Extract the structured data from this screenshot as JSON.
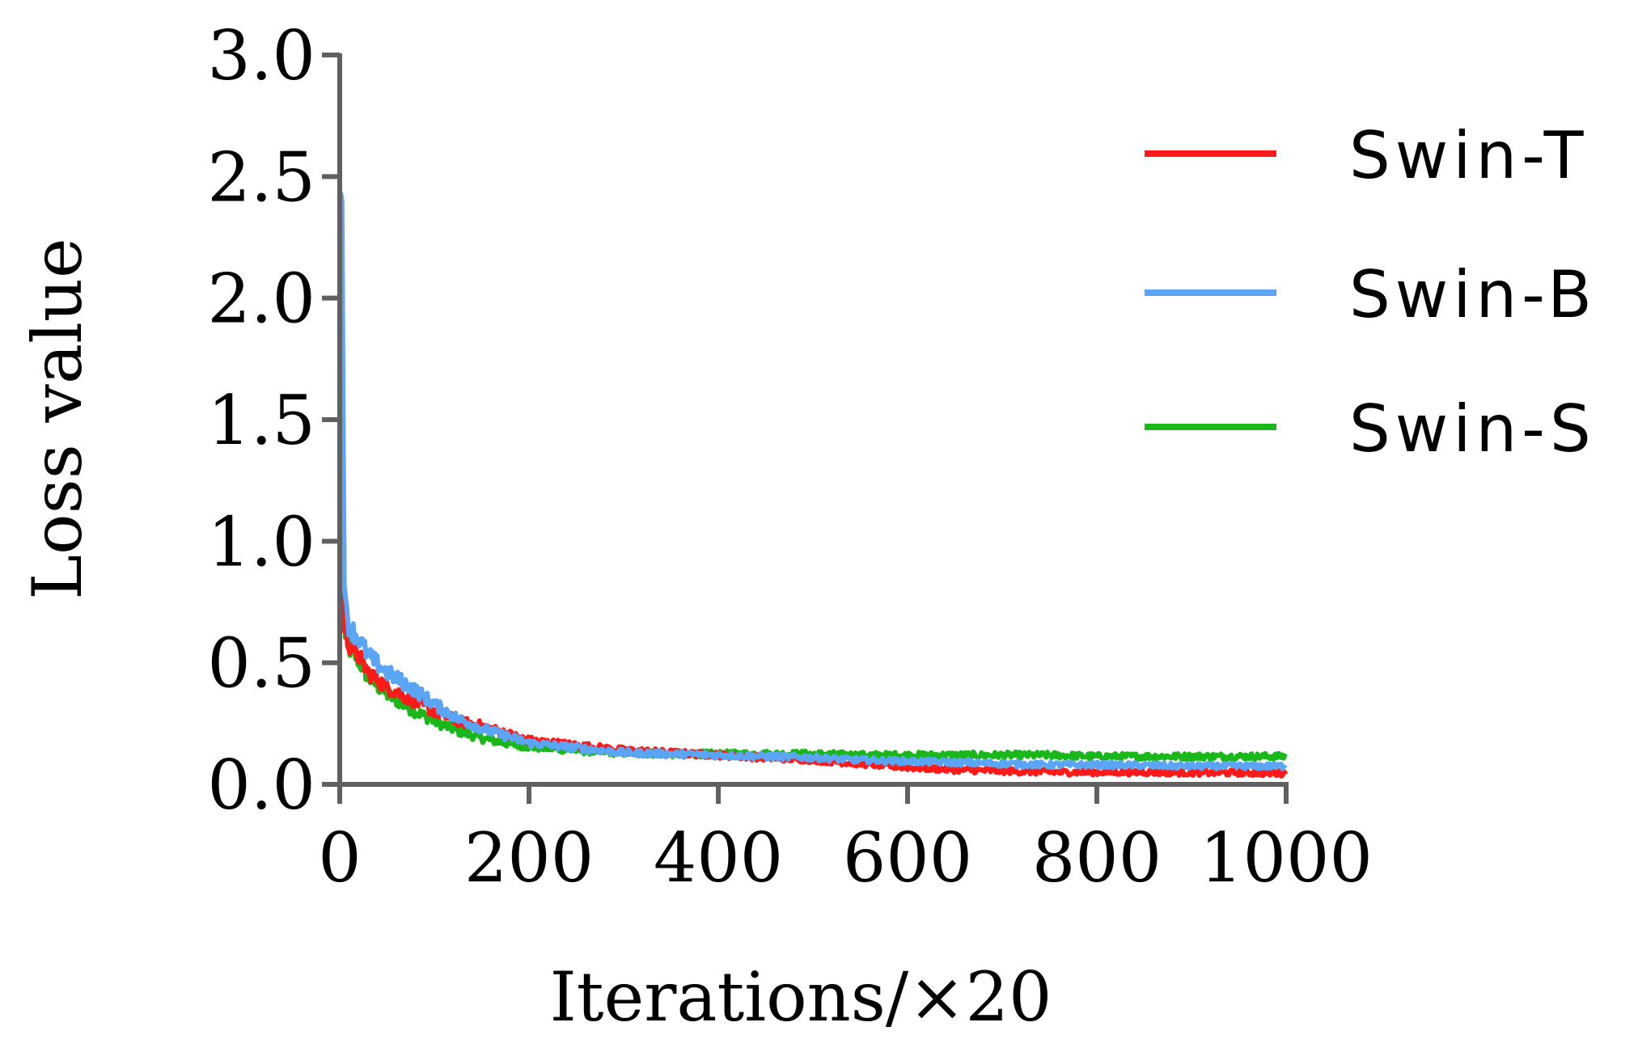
{
  "chart_data": {
    "type": "line",
    "title": "",
    "xlabel": "Iterations/×20",
    "ylabel": "Loss value",
    "xlim": [
      0,
      1000
    ],
    "ylim": [
      0.0,
      3.0
    ],
    "xticks": [
      "0",
      "200",
      "400",
      "600",
      "800",
      "1000"
    ],
    "yticks": [
      "0.0",
      "0.5",
      "1.0",
      "1.5",
      "2.0",
      "2.5",
      "3.0"
    ],
    "grid": false,
    "legend_position": "top-right",
    "series": [
      {
        "name": "Swin-T",
        "color": "#ff1a1a",
        "x": [
          0,
          2,
          5,
          10,
          20,
          30,
          50,
          75,
          100,
          125,
          150,
          175,
          200,
          250,
          300,
          350,
          400,
          450,
          500,
          550,
          600,
          650,
          700,
          750,
          800,
          850,
          900,
          950,
          1000
        ],
        "y": [
          0.85,
          1.2,
          0.62,
          0.58,
          0.53,
          0.46,
          0.4,
          0.35,
          0.3,
          0.26,
          0.24,
          0.21,
          0.18,
          0.16,
          0.14,
          0.13,
          0.12,
          0.11,
          0.1,
          0.085,
          0.07,
          0.06,
          0.055,
          0.05,
          0.05,
          0.05,
          0.048,
          0.048,
          0.045
        ]
      },
      {
        "name": "Swin-B",
        "color": "#5aa5f5",
        "x": [
          0,
          2,
          5,
          10,
          20,
          30,
          50,
          75,
          100,
          125,
          150,
          175,
          200,
          250,
          300,
          350,
          400,
          450,
          500,
          550,
          600,
          650,
          700,
          750,
          800,
          850,
          900,
          950,
          1000
        ],
        "y": [
          2.1,
          2.65,
          0.75,
          0.65,
          0.6,
          0.53,
          0.46,
          0.4,
          0.33,
          0.27,
          0.23,
          0.2,
          0.17,
          0.15,
          0.13,
          0.125,
          0.12,
          0.115,
          0.11,
          0.1,
          0.095,
          0.09,
          0.085,
          0.08,
          0.08,
          0.078,
          0.075,
          0.075,
          0.075
        ]
      },
      {
        "name": "Swin-S",
        "color": "#19b719",
        "x": [
          0,
          2,
          5,
          10,
          20,
          30,
          50,
          75,
          100,
          125,
          150,
          175,
          200,
          250,
          300,
          350,
          400,
          450,
          500,
          550,
          600,
          650,
          700,
          750,
          800,
          850,
          900,
          950,
          1000
        ],
        "y": [
          1.8,
          2.3,
          0.6,
          0.56,
          0.51,
          0.44,
          0.37,
          0.31,
          0.26,
          0.22,
          0.19,
          0.17,
          0.155,
          0.14,
          0.13,
          0.125,
          0.125,
          0.125,
          0.125,
          0.12,
          0.12,
          0.12,
          0.12,
          0.12,
          0.115,
          0.115,
          0.115,
          0.115,
          0.115
        ]
      }
    ]
  }
}
